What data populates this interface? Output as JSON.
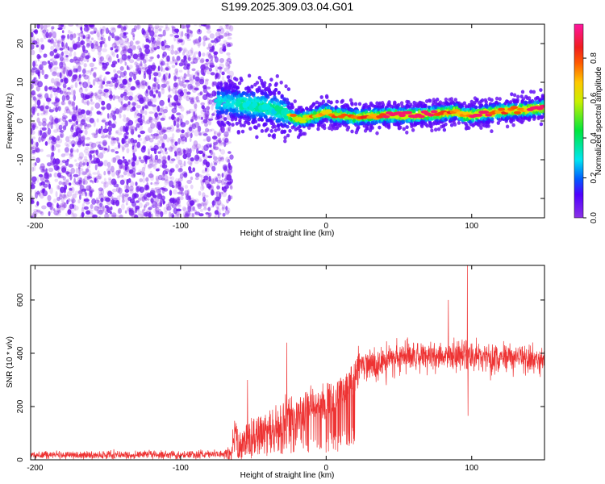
{
  "chart_data": [
    {
      "type": "heatmap",
      "title": "S199.2025.309.03.04.G01",
      "xlabel": "Height of straight line (km)",
      "ylabel": "Frequency (Hz)",
      "xlim": [
        -203,
        150
      ],
      "ylim": [
        -25,
        25
      ],
      "xticks": [
        -200,
        -100,
        0,
        100
      ],
      "yticks": [
        -20,
        -10,
        0,
        10,
        20
      ],
      "colorbar": {
        "label": "Normalized spectral amplitude",
        "range": [
          0.0,
          0.97
        ],
        "ticks": [
          0.0,
          0.2,
          0.4,
          0.6,
          0.8
        ],
        "colormap": "rainbow (purple-blue-cyan-green-yellow-orange-red-pink)"
      },
      "regions": [
        {
          "description": "noise scatter",
          "x_range": [
            -203,
            -65
          ],
          "y_range": [
            -25,
            25
          ],
          "amplitude": [
            0.0,
            0.1
          ]
        },
        {
          "description": "signal band",
          "x_range": [
            -75,
            150
          ],
          "amplitude_peak": 0.95
        }
      ],
      "ridge": {
        "x": [
          -75,
          -60,
          -50,
          -40,
          -30,
          -20,
          -15,
          -10,
          -5,
          0,
          5,
          10,
          20,
          40,
          60,
          80,
          90,
          95,
          100,
          120,
          140,
          150
        ],
        "y": [
          5,
          4.5,
          4,
          3.5,
          2.5,
          0.5,
          0.5,
          1,
          1.5,
          2.5,
          1.5,
          1.5,
          1,
          1.5,
          1.5,
          2,
          2.5,
          1.5,
          1.5,
          2.5,
          3,
          3.5
        ]
      }
    },
    {
      "type": "line",
      "title": "",
      "xlabel": "Height of straight line (km)",
      "ylabel": "SNR (10 * v/v)",
      "xlim": [
        -203,
        150
      ],
      "ylim": [
        0,
        730
      ],
      "xticks": [
        -200,
        -100,
        0,
        100
      ],
      "yticks": [
        0,
        200,
        400,
        600
      ],
      "series_color": "#ee3333",
      "envelope": {
        "x": [
          -203,
          -180,
          -150,
          -120,
          -100,
          -80,
          -70,
          -65,
          -62,
          -60,
          -55,
          -50,
          -45,
          -40,
          -30,
          -20,
          -10,
          0,
          10,
          20,
          30,
          40,
          60,
          80,
          95,
          100,
          120,
          150
        ],
        "y": [
          18,
          18,
          18,
          19,
          19,
          20,
          22,
          30,
          110,
          70,
          110,
          130,
          150,
          140,
          190,
          210,
          240,
          260,
          290,
          340,
          360,
          370,
          385,
          390,
          395,
          385,
          380,
          380
        ]
      },
      "spread": {
        "x": [
          -203,
          -70,
          -62,
          -40,
          -20,
          0,
          20,
          60,
          150
        ],
        "y": [
          12,
          12,
          60,
          90,
          90,
          80,
          60,
          45,
          45
        ]
      },
      "spikes": [
        {
          "x": -54,
          "y": 300
        },
        {
          "x": -27,
          "y": 440
        },
        {
          "x": 84,
          "y": 600
        },
        {
          "x": 97,
          "y": 730
        },
        {
          "x": 97.5,
          "y": 165
        }
      ]
    }
  ]
}
